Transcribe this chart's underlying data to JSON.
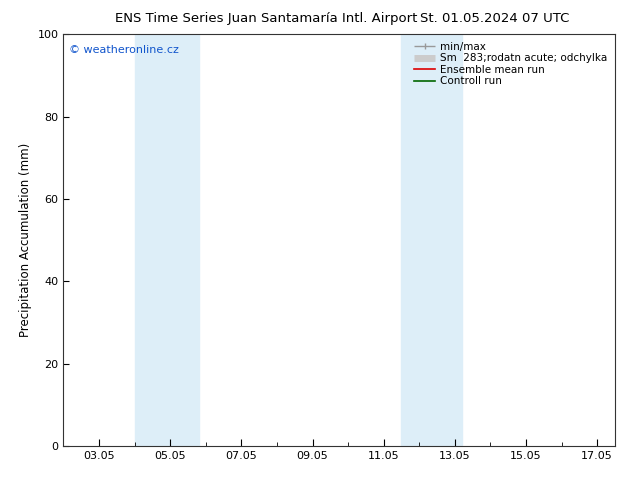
{
  "title_left": "ENS Time Series Juan Santamaría Intl. Airport",
  "title_right": "St. 01.05.2024 07 UTC",
  "ylabel": "Precipitation Accumulation (mm)",
  "ylim": [
    0,
    100
  ],
  "yticks": [
    0,
    20,
    40,
    60,
    80,
    100
  ],
  "xlim": [
    2.0,
    17.5
  ],
  "xtick_positions": [
    3,
    5,
    7,
    9,
    11,
    13,
    15,
    17
  ],
  "xtick_labels": [
    "03.05",
    "05.05",
    "07.05",
    "09.05",
    "11.05",
    "13.05",
    "15.05",
    "17.05"
  ],
  "shaded_bands": [
    {
      "xmin": 4.0,
      "xmax": 5.8
    },
    {
      "xmin": 11.5,
      "xmax": 13.2
    }
  ],
  "band_color": "#ddeef8",
  "watermark": "© weatheronline.cz",
  "watermark_color": "#1155cc",
  "legend_entries": [
    {
      "label": "min/max",
      "color": "#999999",
      "lw": 1.0,
      "type": "minmax"
    },
    {
      "label": "Sm  283;rodatn acute; odchylka",
      "color": "#cccccc",
      "lw": 5,
      "type": "band"
    },
    {
      "label": "Ensemble mean run",
      "color": "#dd0000",
      "lw": 1.2,
      "type": "line"
    },
    {
      "label": "Controll run",
      "color": "#006600",
      "lw": 1.2,
      "type": "line"
    }
  ],
  "grid_color": "#dddddd",
  "bg_color": "#ffffff",
  "plot_bg_color": "#ffffff",
  "title_fontsize": 9.5,
  "tick_fontsize": 8,
  "label_fontsize": 8.5,
  "legend_fontsize": 7.5,
  "watermark_fontsize": 8
}
